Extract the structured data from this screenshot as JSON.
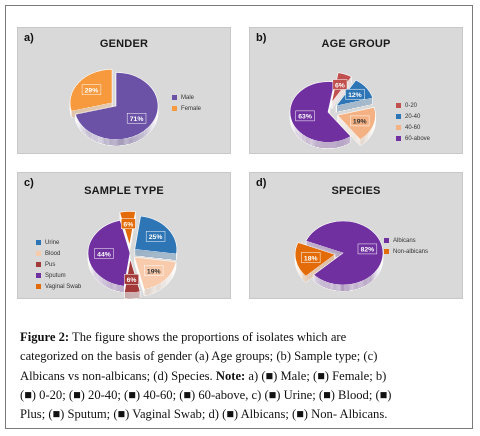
{
  "colors": {
    "male": "#6b52a7",
    "female": "#f79a3e",
    "age_0_20": "#c0504d",
    "age_20_40": "#2e75b6",
    "age_40_60": "#f4b183",
    "age_60_above": "#7030a0",
    "urine": "#2e75b6",
    "blood": "#f8cbad",
    "pus": "#a33a3a",
    "sputum": "#7030a0",
    "vaginal_swab": "#e36c09",
    "albicans": "#7030a0",
    "non_albicans": "#e36c09"
  },
  "chart_data": [
    {
      "panel": "a)",
      "type": "pie",
      "title": "GENDER",
      "categories": [
        "Male",
        "Female"
      ],
      "values": [
        71,
        29
      ],
      "data_labels": [
        "71%",
        "29%"
      ],
      "legend": "right"
    },
    {
      "panel": "b)",
      "type": "pie",
      "title": "AGE GROUP",
      "categories": [
        "0-20",
        "20-40",
        "40-60",
        "60-above"
      ],
      "values": [
        6,
        12,
        19,
        63
      ],
      "data_labels": [
        "6%",
        "12%",
        "19%",
        "63%"
      ],
      "legend": "right"
    },
    {
      "panel": "c)",
      "type": "pie",
      "title": "SAMPLE TYPE",
      "categories": [
        "Urine",
        "Blood",
        "Pus",
        "Sputum",
        "Vaginal Swab"
      ],
      "values": [
        25,
        19,
        6,
        44,
        6
      ],
      "data_labels": [
        "25%",
        "19%",
        "6%",
        "44%",
        "6%"
      ],
      "legend": "left"
    },
    {
      "panel": "d)",
      "type": "pie",
      "title": "SPECIES",
      "categories": [
        "Albicans",
        "Non-albicans"
      ],
      "values": [
        82,
        18
      ],
      "data_labels": [
        "82%",
        "18%"
      ],
      "legend": "right"
    }
  ],
  "caption": {
    "label": "Figure 2:",
    "line1": "The figure shows the proportions of isolates which are",
    "line2": "categorized on the basis of gender (a) Age groups; (b) Sample type; (c)",
    "line3a": "Albicans vs non-albicans; (d) Species.",
    "note_label": "Note:",
    "line3b": "a) (■) Male; (■) Female; b)",
    "line4": "(■) 0-20; (■) 20-40; (■) 40-60; (■) 60-above, c) (■) Urine; (■) Blood; (■)",
    "line5": "Plus; (■) Sputum; (■) Vaginal Swab; d) (■) Albicans; (■) Non- Albicans."
  }
}
